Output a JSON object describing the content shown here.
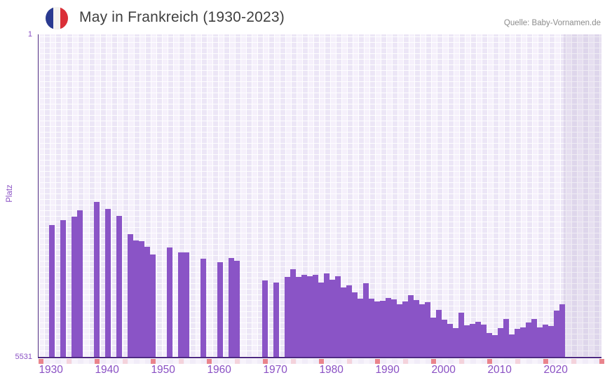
{
  "header": {
    "title": "May in Frankreich (1930-2023)",
    "source": "Quelle: Baby-Vornamen.de",
    "flag_icon": {
      "name": "france-flag-icon",
      "colors": [
        "#2a3a90",
        "#f5f3ef",
        "#da2f38"
      ]
    }
  },
  "y_axis": {
    "label": "Platz",
    "top_tick": "1",
    "bottom_tick": "5531"
  },
  "chart_data": {
    "type": "bar",
    "title": "May in Frankreich (1930-2023)",
    "xlabel": "",
    "ylabel": "Platz",
    "ylim": [
      1,
      5531
    ],
    "y_axis_inverted": true,
    "grid": true,
    "x_tick_labels": [
      "1930",
      "1940",
      "1950",
      "1960",
      "1970",
      "1980",
      "1990",
      "2000",
      "2010",
      "2020"
    ],
    "no_data_band_years": [
      2022,
      2023
    ],
    "colors": {
      "bar": "#8a54c6",
      "axis": "#4e2a82",
      "tick_mark_dark": "#e66f79",
      "tick_mark_light": "#f3ccd6",
      "x_label": "#8a50c4",
      "plot_background": "#f0eaf8",
      "no_data_band": "rgba(78,42,130,0.085)"
    },
    "points": [
      {
        "year": 1930,
        "rank": 3271
      },
      {
        "year": 1932,
        "rank": 3187
      },
      {
        "year": 1934,
        "rank": 3123
      },
      {
        "year": 1935,
        "rank": 3015
      },
      {
        "year": 1938,
        "rank": 2871
      },
      {
        "year": 1940,
        "rank": 2991
      },
      {
        "year": 1942,
        "rank": 3111
      },
      {
        "year": 1944,
        "rank": 3424
      },
      {
        "year": 1945,
        "rank": 3539
      },
      {
        "year": 1946,
        "rank": 3551
      },
      {
        "year": 1947,
        "rank": 3640
      },
      {
        "year": 1948,
        "rank": 3772
      },
      {
        "year": 1951,
        "rank": 3656
      },
      {
        "year": 1953,
        "rank": 3740
      },
      {
        "year": 1954,
        "rank": 3740
      },
      {
        "year": 1957,
        "rank": 3848
      },
      {
        "year": 1960,
        "rank": 3908
      },
      {
        "year": 1962,
        "rank": 3836
      },
      {
        "year": 1963,
        "rank": 3884
      },
      {
        "year": 1968,
        "rank": 4221
      },
      {
        "year": 1970,
        "rank": 4253
      },
      {
        "year": 1972,
        "rank": 4161
      },
      {
        "year": 1973,
        "rank": 4032
      },
      {
        "year": 1974,
        "rank": 4161
      },
      {
        "year": 1975,
        "rank": 4129
      },
      {
        "year": 1976,
        "rank": 4153
      },
      {
        "year": 1977,
        "rank": 4129
      },
      {
        "year": 1978,
        "rank": 4261
      },
      {
        "year": 1979,
        "rank": 4105
      },
      {
        "year": 1980,
        "rank": 4209
      },
      {
        "year": 1981,
        "rank": 4153
      },
      {
        "year": 1982,
        "rank": 4345
      },
      {
        "year": 1983,
        "rank": 4305
      },
      {
        "year": 1984,
        "rank": 4422
      },
      {
        "year": 1985,
        "rank": 4537
      },
      {
        "year": 1986,
        "rank": 4269
      },
      {
        "year": 1987,
        "rank": 4537
      },
      {
        "year": 1988,
        "rank": 4585
      },
      {
        "year": 1989,
        "rank": 4570
      },
      {
        "year": 1990,
        "rank": 4522
      },
      {
        "year": 1991,
        "rank": 4546
      },
      {
        "year": 1992,
        "rank": 4630
      },
      {
        "year": 1993,
        "rank": 4582
      },
      {
        "year": 1994,
        "rank": 4473
      },
      {
        "year": 1995,
        "rank": 4561
      },
      {
        "year": 1996,
        "rank": 4634
      },
      {
        "year": 1997,
        "rank": 4590
      },
      {
        "year": 1998,
        "rank": 4858
      },
      {
        "year": 1999,
        "rank": 4726
      },
      {
        "year": 2000,
        "rank": 4894
      },
      {
        "year": 2001,
        "rank": 4960
      },
      {
        "year": 2002,
        "rank": 5032
      },
      {
        "year": 2003,
        "rank": 4768
      },
      {
        "year": 2004,
        "rank": 4984
      },
      {
        "year": 2005,
        "rank": 4966
      },
      {
        "year": 2006,
        "rank": 4924
      },
      {
        "year": 2007,
        "rank": 4972
      },
      {
        "year": 2008,
        "rank": 5128
      },
      {
        "year": 2009,
        "rank": 5164
      },
      {
        "year": 2010,
        "rank": 5032
      },
      {
        "year": 2011,
        "rank": 4882
      },
      {
        "year": 2012,
        "rank": 5146
      },
      {
        "year": 2013,
        "rank": 5044
      },
      {
        "year": 2014,
        "rank": 5020
      },
      {
        "year": 2015,
        "rank": 4936
      },
      {
        "year": 2016,
        "rank": 4876
      },
      {
        "year": 2017,
        "rank": 5026
      },
      {
        "year": 2018,
        "rank": 4972
      },
      {
        "year": 2019,
        "rank": 4996
      },
      {
        "year": 2020,
        "rank": 4734
      },
      {
        "year": 2021,
        "rank": 4630
      }
    ]
  }
}
